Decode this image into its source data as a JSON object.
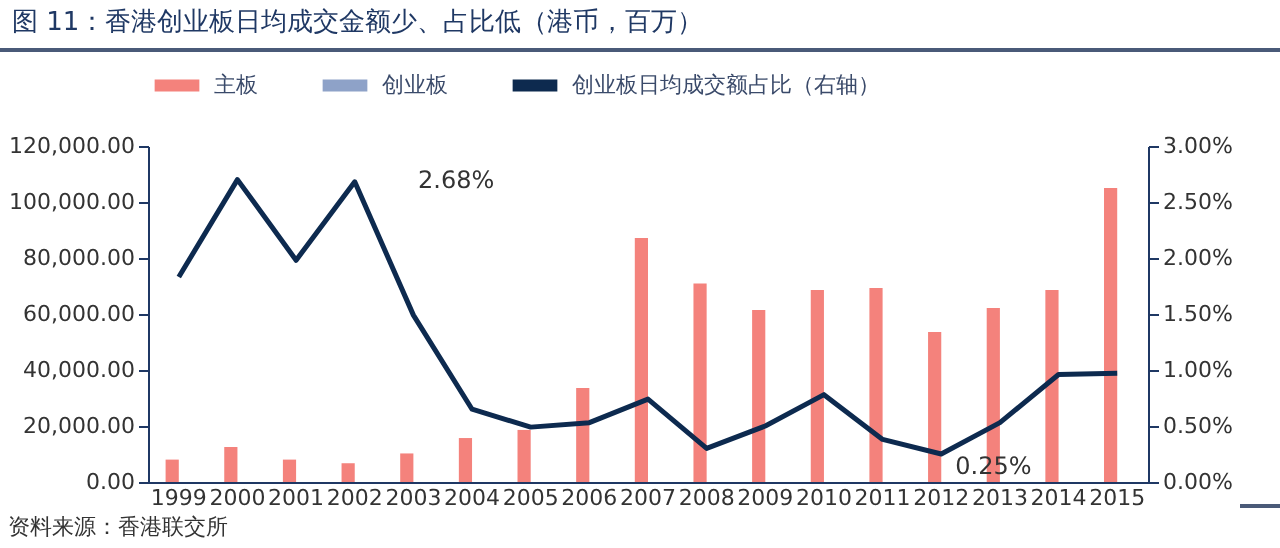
{
  "chart_data": {
    "type": "bar",
    "title": "图 11：香港创业板日均成交金额少、占比低（港币，百万）",
    "categories": [
      "1999",
      "2000",
      "2001",
      "2002",
      "2003",
      "2004",
      "2005",
      "2006",
      "2007",
      "2008",
      "2009",
      "2010",
      "2011",
      "2012",
      "2013",
      "2014",
      "2015"
    ],
    "series": [
      {
        "name": "主板",
        "color": "#f4827c",
        "values": [
          8000,
          12500,
          8000,
          6700,
          10200,
          15700,
          18600,
          33600,
          87100,
          70900,
          61400,
          68600,
          69300,
          53600,
          62100,
          68600,
          105000
        ]
      },
      {
        "name": "创业板",
        "color": "#8ea2c8",
        "values": [
          null,
          null,
          null,
          null,
          null,
          null,
          null,
          null,
          null,
          null,
          null,
          null,
          null,
          null,
          null,
          null,
          null
        ]
      },
      {
        "name": "创业板日均成交额占比（右轴）",
        "type": "line",
        "axis": "y2",
        "color": "#0d2a4f",
        "values": [
          1.83,
          2.7,
          1.98,
          2.68,
          1.49,
          0.65,
          0.49,
          0.53,
          0.74,
          0.3,
          0.5,
          0.78,
          0.38,
          0.25,
          0.53,
          0.96,
          0.97
        ]
      }
    ],
    "ylim": [
      0,
      120000
    ],
    "yticks": [
      {
        "value": 0,
        "label": "0.00"
      },
      {
        "value": 20000,
        "label": "20,000.00"
      },
      {
        "value": 40000,
        "label": "40,000.00"
      },
      {
        "value": 60000,
        "label": "60,000.00"
      },
      {
        "value": 80000,
        "label": "80,000.00"
      },
      {
        "value": 100000,
        "label": "100,000.00"
      },
      {
        "value": 120000,
        "label": "120,000.00"
      }
    ],
    "y2lim": [
      0,
      3
    ],
    "y2ticks": [
      {
        "value": 0,
        "label": "0.00%"
      },
      {
        "value": 0.5,
        "label": "0.50%"
      },
      {
        "value": 1,
        "label": "1.00%"
      },
      {
        "value": 1.5,
        "label": "1.50%"
      },
      {
        "value": 2,
        "label": "2.00%"
      },
      {
        "value": 2.5,
        "label": "2.50%"
      },
      {
        "value": 3,
        "label": "3.00%"
      }
    ],
    "grid": false,
    "legend": "top",
    "annotations": [
      "2.68%",
      {
        "text": "0.25%",
        "x": "2012",
        "y": 0.25
      },
      "资料来源：香港联交所"
    ]
  }
}
